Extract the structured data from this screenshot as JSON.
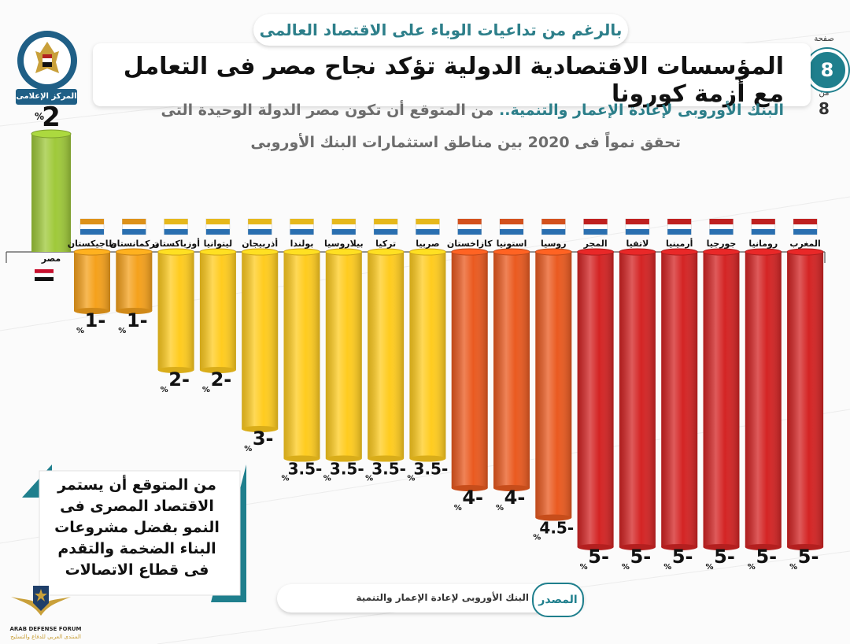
{
  "header": {
    "subtitle": "بالرغم من تداعيات الوباء على الاقتصاد العالمى",
    "title": "المؤسسات الاقتصادية الدولية تؤكد نجاح مصر فى التعامل مع أزمة كورونا",
    "lede_part1": "البنك الأوروبى لإعادة الإعمار والتنمية..",
    "lede_part2": "من المتوقع أن تكون مصر الدولة الوحيدة التى",
    "lede_line2": "تحقق نمواً فى 2020 بين مناطق استثمارات البنك الأوروبى"
  },
  "page": {
    "word": "صفحة",
    "current": "8",
    "of": "من",
    "total": "8"
  },
  "logo": {
    "caption": "المركز الإعلامى",
    "ring_text": "جمهورية مصر العربية رئاسة مجلس الوزراء"
  },
  "chart_data": {
    "type": "bar",
    "title": "",
    "unit": "%",
    "categories": [
      "مصر",
      "طاجيكستان",
      "تركمانستان",
      "أوزباكستان",
      "ليتوانيا",
      "أذربيجان",
      "بولندا",
      "بيلاروسيا",
      "تركيا",
      "صربيا",
      "كازاخستان",
      "استونيا",
      "روسيا",
      "المجر",
      "لاتفيا",
      "أرمينيا",
      "جورجيا",
      "رومانيا",
      "المغرب"
    ],
    "values": [
      2,
      -1,
      -1,
      -2,
      -2,
      -3,
      -3.5,
      -3.5,
      -3.5,
      -3.5,
      -4,
      -4,
      -4.5,
      -5,
      -5,
      -5,
      -5,
      -5,
      -5
    ],
    "value_labels": [
      "2",
      "1-",
      "1-",
      "2-",
      "2-",
      "3-",
      "3.5-",
      "3.5-",
      "3.5-",
      "3.5-",
      "4-",
      "4-",
      "4.5-",
      "5-",
      "5-",
      "5-",
      "5-",
      "5-",
      "5-"
    ],
    "ylim": [
      -5,
      2
    ],
    "colors": {
      "positive": "#9fc93a",
      "yellow": "#ffcc1f",
      "orange": "#f5a11c",
      "red_orange": "#ea5a20",
      "red": "#d42424"
    }
  },
  "note": {
    "text": "من المتوقع أن يستمر الاقتصاد المصرى فى النمو بفضل مشروعات البناء الضخمة والتقدم فى قطاع الاتصالات"
  },
  "source": {
    "badge": "المصدر",
    "text": "البنك الأوروبى لإعادة الإعمار والتنمية"
  },
  "watermark": {
    "line1": "ARAB DEFENSE FORUM",
    "line2": "المنتدى العربي للدفاع والتسليح"
  }
}
